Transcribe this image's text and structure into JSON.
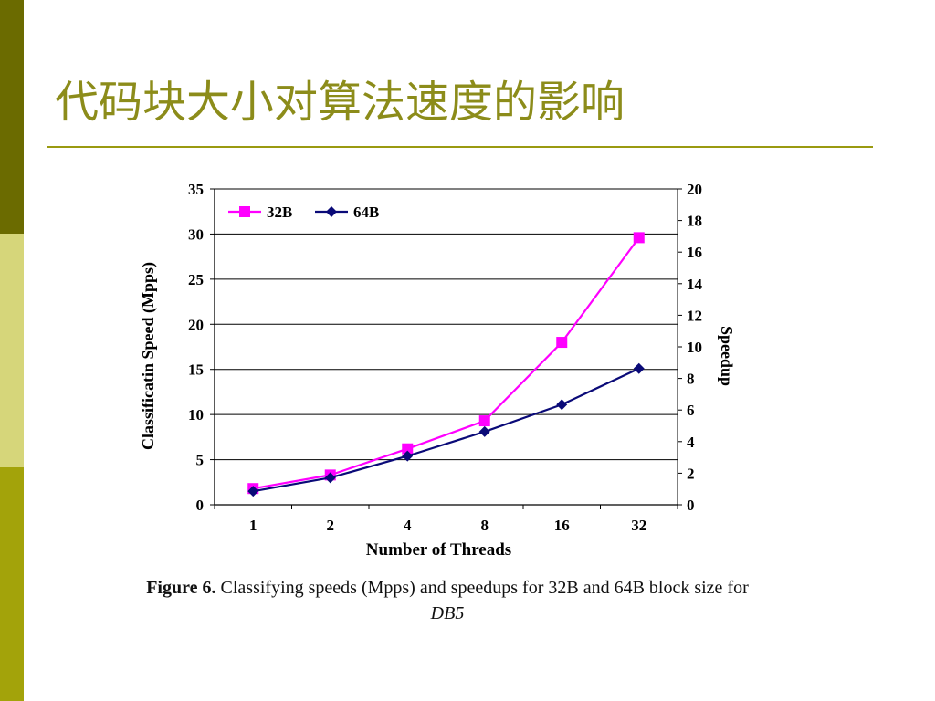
{
  "slide": {
    "title": "代码块大小对算法速度的影响",
    "colors": {
      "title": "#8c8c1a",
      "rule": "#9a9a10",
      "sidebar_top": "#6b6b00",
      "sidebar_middle": "#d6d67a",
      "sidebar_bottom": "#a3a30a"
    }
  },
  "caption": {
    "label": "Figure 6.",
    "text": " Classifying speeds (Mpps) and speedups for 32B and 64B block size for ",
    "italic": "DB5"
  },
  "chart_data": {
    "type": "line",
    "categories": [
      "1",
      "2",
      "4",
      "8",
      "16",
      "32"
    ],
    "xlabel": "Number of Threads",
    "ylabel": "Classificatin Speed (Mpps)",
    "y2label": "Speedup",
    "ylim": [
      0,
      35
    ],
    "y2lim": [
      0,
      20
    ],
    "yticks": [
      "0",
      "5",
      "10",
      "15",
      "20",
      "25",
      "30",
      "35"
    ],
    "y2ticks": [
      "0",
      "2",
      "4",
      "6",
      "8",
      "10",
      "12",
      "14",
      "16",
      "18",
      "20"
    ],
    "grid": true,
    "legend": "top-left",
    "series": [
      {
        "name": "32B",
        "color": "#ff00ff",
        "marker": "square",
        "values": [
          1.8,
          3.3,
          6.2,
          9.3,
          18.0,
          29.6
        ]
      },
      {
        "name": "64B",
        "color": "#0a0a78",
        "marker": "diamond",
        "values": [
          1.5,
          3.0,
          5.4,
          8.1,
          11.1,
          15.1
        ]
      }
    ]
  }
}
